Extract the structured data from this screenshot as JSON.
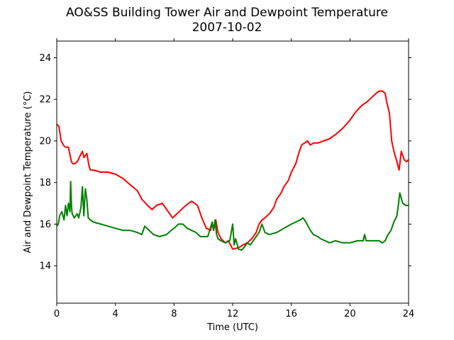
{
  "chart_data": {
    "type": "line",
    "title": "AO&SS Building Tower Air and Dewpoint Temperature",
    "subtitle": "2007-10-02",
    "xlabel": "Time (UTC)",
    "ylabel": "Air and Dewpoint Temperature (°C)",
    "xlim": [
      0,
      24
    ],
    "ylim": [
      12.2,
      24.8
    ],
    "xticks": [
      "0",
      "4",
      "8",
      "12",
      "16",
      "20",
      "24"
    ],
    "yticks": [
      "14",
      "16",
      "18",
      "20",
      "22",
      "24"
    ],
    "grid": false,
    "legend": "none",
    "series": [
      {
        "color": "#ff0000",
        "x": [
          0.0,
          0.15,
          0.3,
          0.45,
          0.6,
          0.8,
          1.0,
          1.1,
          1.2,
          1.4,
          1.6,
          1.75,
          1.85,
          1.95,
          2.05,
          2.2,
          2.3,
          2.5,
          3.0,
          3.5,
          4.0,
          4.5,
          5.0,
          5.5,
          5.8,
          6.2,
          6.5,
          6.8,
          7.2,
          7.6,
          7.9,
          8.2,
          8.5,
          8.8,
          9.0,
          9.2,
          9.4,
          9.6,
          9.9,
          10.2,
          10.5,
          10.6,
          10.7,
          10.85,
          11.0,
          11.2,
          11.5,
          11.7,
          12.0,
          12.3,
          12.5,
          12.7,
          13.0,
          13.3,
          13.6,
          13.8,
          14.0,
          14.2,
          14.5,
          14.8,
          15.0,
          15.3,
          15.5,
          15.8,
          16.0,
          16.3,
          16.5,
          16.7,
          16.9,
          17.1,
          17.3,
          17.5,
          17.8,
          18.2,
          18.6,
          19.0,
          19.5,
          20.0,
          20.4,
          20.8,
          21.2,
          21.5,
          21.8,
          22.0,
          22.2,
          22.4,
          22.5,
          22.7,
          22.85,
          23.0,
          23.2,
          23.35,
          23.5,
          23.7,
          23.85,
          24.0
        ],
        "values": [
          20.8,
          20.7,
          20.0,
          19.8,
          19.7,
          19.7,
          19.0,
          18.9,
          18.9,
          19.0,
          19.3,
          19.5,
          19.2,
          19.3,
          19.4,
          18.8,
          18.6,
          18.6,
          18.5,
          18.5,
          18.4,
          18.2,
          17.9,
          17.6,
          17.2,
          16.9,
          16.7,
          16.9,
          17.0,
          16.6,
          16.3,
          16.5,
          16.7,
          16.9,
          17.0,
          17.1,
          17.0,
          16.9,
          16.3,
          15.8,
          15.7,
          16.1,
          15.7,
          16.2,
          15.6,
          15.3,
          15.1,
          15.2,
          14.8,
          14.85,
          14.9,
          15.0,
          15.1,
          15.3,
          15.6,
          16.0,
          16.2,
          16.3,
          16.5,
          16.8,
          17.2,
          17.5,
          17.8,
          18.1,
          18.5,
          18.9,
          19.4,
          19.8,
          19.9,
          20.0,
          19.8,
          19.9,
          19.9,
          20.0,
          20.1,
          20.3,
          20.6,
          21.0,
          21.4,
          21.7,
          21.9,
          22.1,
          22.3,
          22.4,
          22.4,
          22.3,
          21.9,
          21.3,
          20.0,
          19.5,
          19.0,
          18.6,
          19.5,
          19.1,
          19.0,
          19.1
        ]
      },
      {
        "color": "#008000",
        "x": [
          0.0,
          0.1,
          0.2,
          0.35,
          0.5,
          0.6,
          0.7,
          0.8,
          0.9,
          0.95,
          1.0,
          1.05,
          1.2,
          1.4,
          1.5,
          1.65,
          1.75,
          1.85,
          1.95,
          2.05,
          2.15,
          2.3,
          2.5,
          3.0,
          3.5,
          4.0,
          4.5,
          5.0,
          5.5,
          5.8,
          6.0,
          6.3,
          6.6,
          7.0,
          7.5,
          7.8,
          8.0,
          8.3,
          8.6,
          8.9,
          9.2,
          9.5,
          9.8,
          10.0,
          10.3,
          10.6,
          10.7,
          10.8,
          10.9,
          11.0,
          11.2,
          11.5,
          11.8,
          12.0,
          12.1,
          12.2,
          12.4,
          12.6,
          12.8,
          13.0,
          13.2,
          13.5,
          13.8,
          14.0,
          14.2,
          14.5,
          15.0,
          15.5,
          16.0,
          16.3,
          16.6,
          16.8,
          17.0,
          17.3,
          17.5,
          17.8,
          18.0,
          18.3,
          18.6,
          19.0,
          19.5,
          20.0,
          20.5,
          20.9,
          21.0,
          21.1,
          21.5,
          22.0,
          22.2,
          22.4,
          22.6,
          22.8,
          23.0,
          23.2,
          23.3,
          23.4,
          23.6,
          23.8,
          24.0
        ],
        "values": [
          15.9,
          16.0,
          16.4,
          16.6,
          16.2,
          16.9,
          16.4,
          17.0,
          16.6,
          18.05,
          16.9,
          16.5,
          16.3,
          16.5,
          16.3,
          16.8,
          17.8,
          16.4,
          17.7,
          17.2,
          16.3,
          16.2,
          16.1,
          16.0,
          15.9,
          15.8,
          15.7,
          15.7,
          15.6,
          15.5,
          15.9,
          15.7,
          15.5,
          15.4,
          15.5,
          15.7,
          15.8,
          16.0,
          16.0,
          15.8,
          15.7,
          15.6,
          15.4,
          15.4,
          15.4,
          16.1,
          15.7,
          16.2,
          15.5,
          15.3,
          15.2,
          15.1,
          15.2,
          16.0,
          15.0,
          15.3,
          14.8,
          14.75,
          14.9,
          15.1,
          15.0,
          15.3,
          15.6,
          16.0,
          15.6,
          15.5,
          15.6,
          15.8,
          16.0,
          16.1,
          16.2,
          16.3,
          16.1,
          15.7,
          15.5,
          15.4,
          15.3,
          15.2,
          15.1,
          15.2,
          15.1,
          15.1,
          15.2,
          15.2,
          15.5,
          15.2,
          15.2,
          15.2,
          15.1,
          15.2,
          15.5,
          15.7,
          16.1,
          16.4,
          16.9,
          17.5,
          17.0,
          16.9,
          16.9
        ]
      }
    ]
  }
}
